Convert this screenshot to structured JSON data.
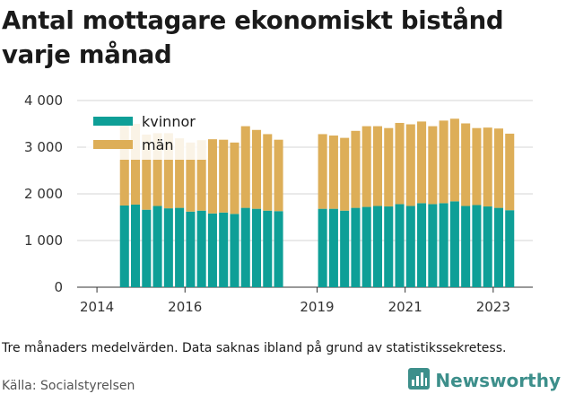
{
  "header": {
    "title": "Antal mottagare ekonomiskt bistånd varje månad"
  },
  "footer": {
    "note": "Tre månaders medelvärden. Data saknas ibland på grund av statistikssekretess.",
    "source": "Källa: Socialstyrelsen",
    "brand": "Newsworthy"
  },
  "colors": {
    "kvinnor": "#0e9f97",
    "man": "#ddae58",
    "grid": "#d4d4d4",
    "brand": "#3d8f8b"
  },
  "icons": {
    "brand_logo": "bar-chart-icon"
  },
  "chart_data": {
    "type": "bar",
    "stacked": true,
    "title": "Antal mottagare ekonomiskt bistånd varje månad",
    "xlabel": "",
    "ylabel": "",
    "ylim": [
      0,
      4000
    ],
    "y_ticks": [
      0,
      1000,
      2000,
      3000,
      4000
    ],
    "y_tick_labels": [
      "0",
      "1 000",
      "2 000",
      "3 000",
      "4 000"
    ],
    "x_ticks": [
      2014,
      2016,
      2019,
      2021,
      2023
    ],
    "x_tick_labels": [
      "2014",
      "2016",
      "2019",
      "2021",
      "2023"
    ],
    "grid": true,
    "legend": "top-left",
    "categories": [
      "2014 Q3",
      "2014 Q4",
      "2015 Q1",
      "2015 Q2",
      "2015 Q3",
      "2015 Q4",
      "2016 Q1",
      "2016 Q2",
      "2016 Q3",
      "2016 Q4",
      "2017 Q1",
      "2017 Q2",
      "2017 Q3",
      "2017 Q4",
      "2018 Q1",
      "2018 Q2",
      "2018 Q3",
      "2018 Q4",
      "2019 Q1",
      "2019 Q2",
      "2019 Q3",
      "2019 Q4",
      "2020 Q1",
      "2020 Q2",
      "2020 Q3",
      "2020 Q4",
      "2021 Q1",
      "2021 Q2",
      "2021 Q3",
      "2021 Q4",
      "2022 Q1",
      "2022 Q2",
      "2022 Q3",
      "2022 Q4",
      "2023 Q1",
      "2023 Q2"
    ],
    "series": [
      {
        "name": "kvinnor",
        "values": [
          1750,
          1770,
          1660,
          1740,
          1690,
          1700,
          1620,
          1640,
          1580,
          1600,
          1570,
          1700,
          1680,
          1640,
          1630,
          null,
          null,
          null,
          1680,
          1680,
          1640,
          1700,
          1720,
          1740,
          1730,
          1780,
          1740,
          1800,
          1780,
          1800,
          1840,
          1740,
          1760,
          1730,
          1700,
          1650
        ]
      },
      {
        "name": "män",
        "values": [
          1750,
          1730,
          1610,
          1560,
          1610,
          1490,
          1480,
          1510,
          1590,
          1560,
          1530,
          1750,
          1690,
          1640,
          1530,
          null,
          null,
          null,
          1600,
          1570,
          1560,
          1650,
          1730,
          1710,
          1680,
          1740,
          1750,
          1750,
          1670,
          1770,
          1770,
          1770,
          1650,
          1690,
          1700,
          1640
        ]
      }
    ],
    "unit_note": "Tre månaders medelvärden"
  }
}
